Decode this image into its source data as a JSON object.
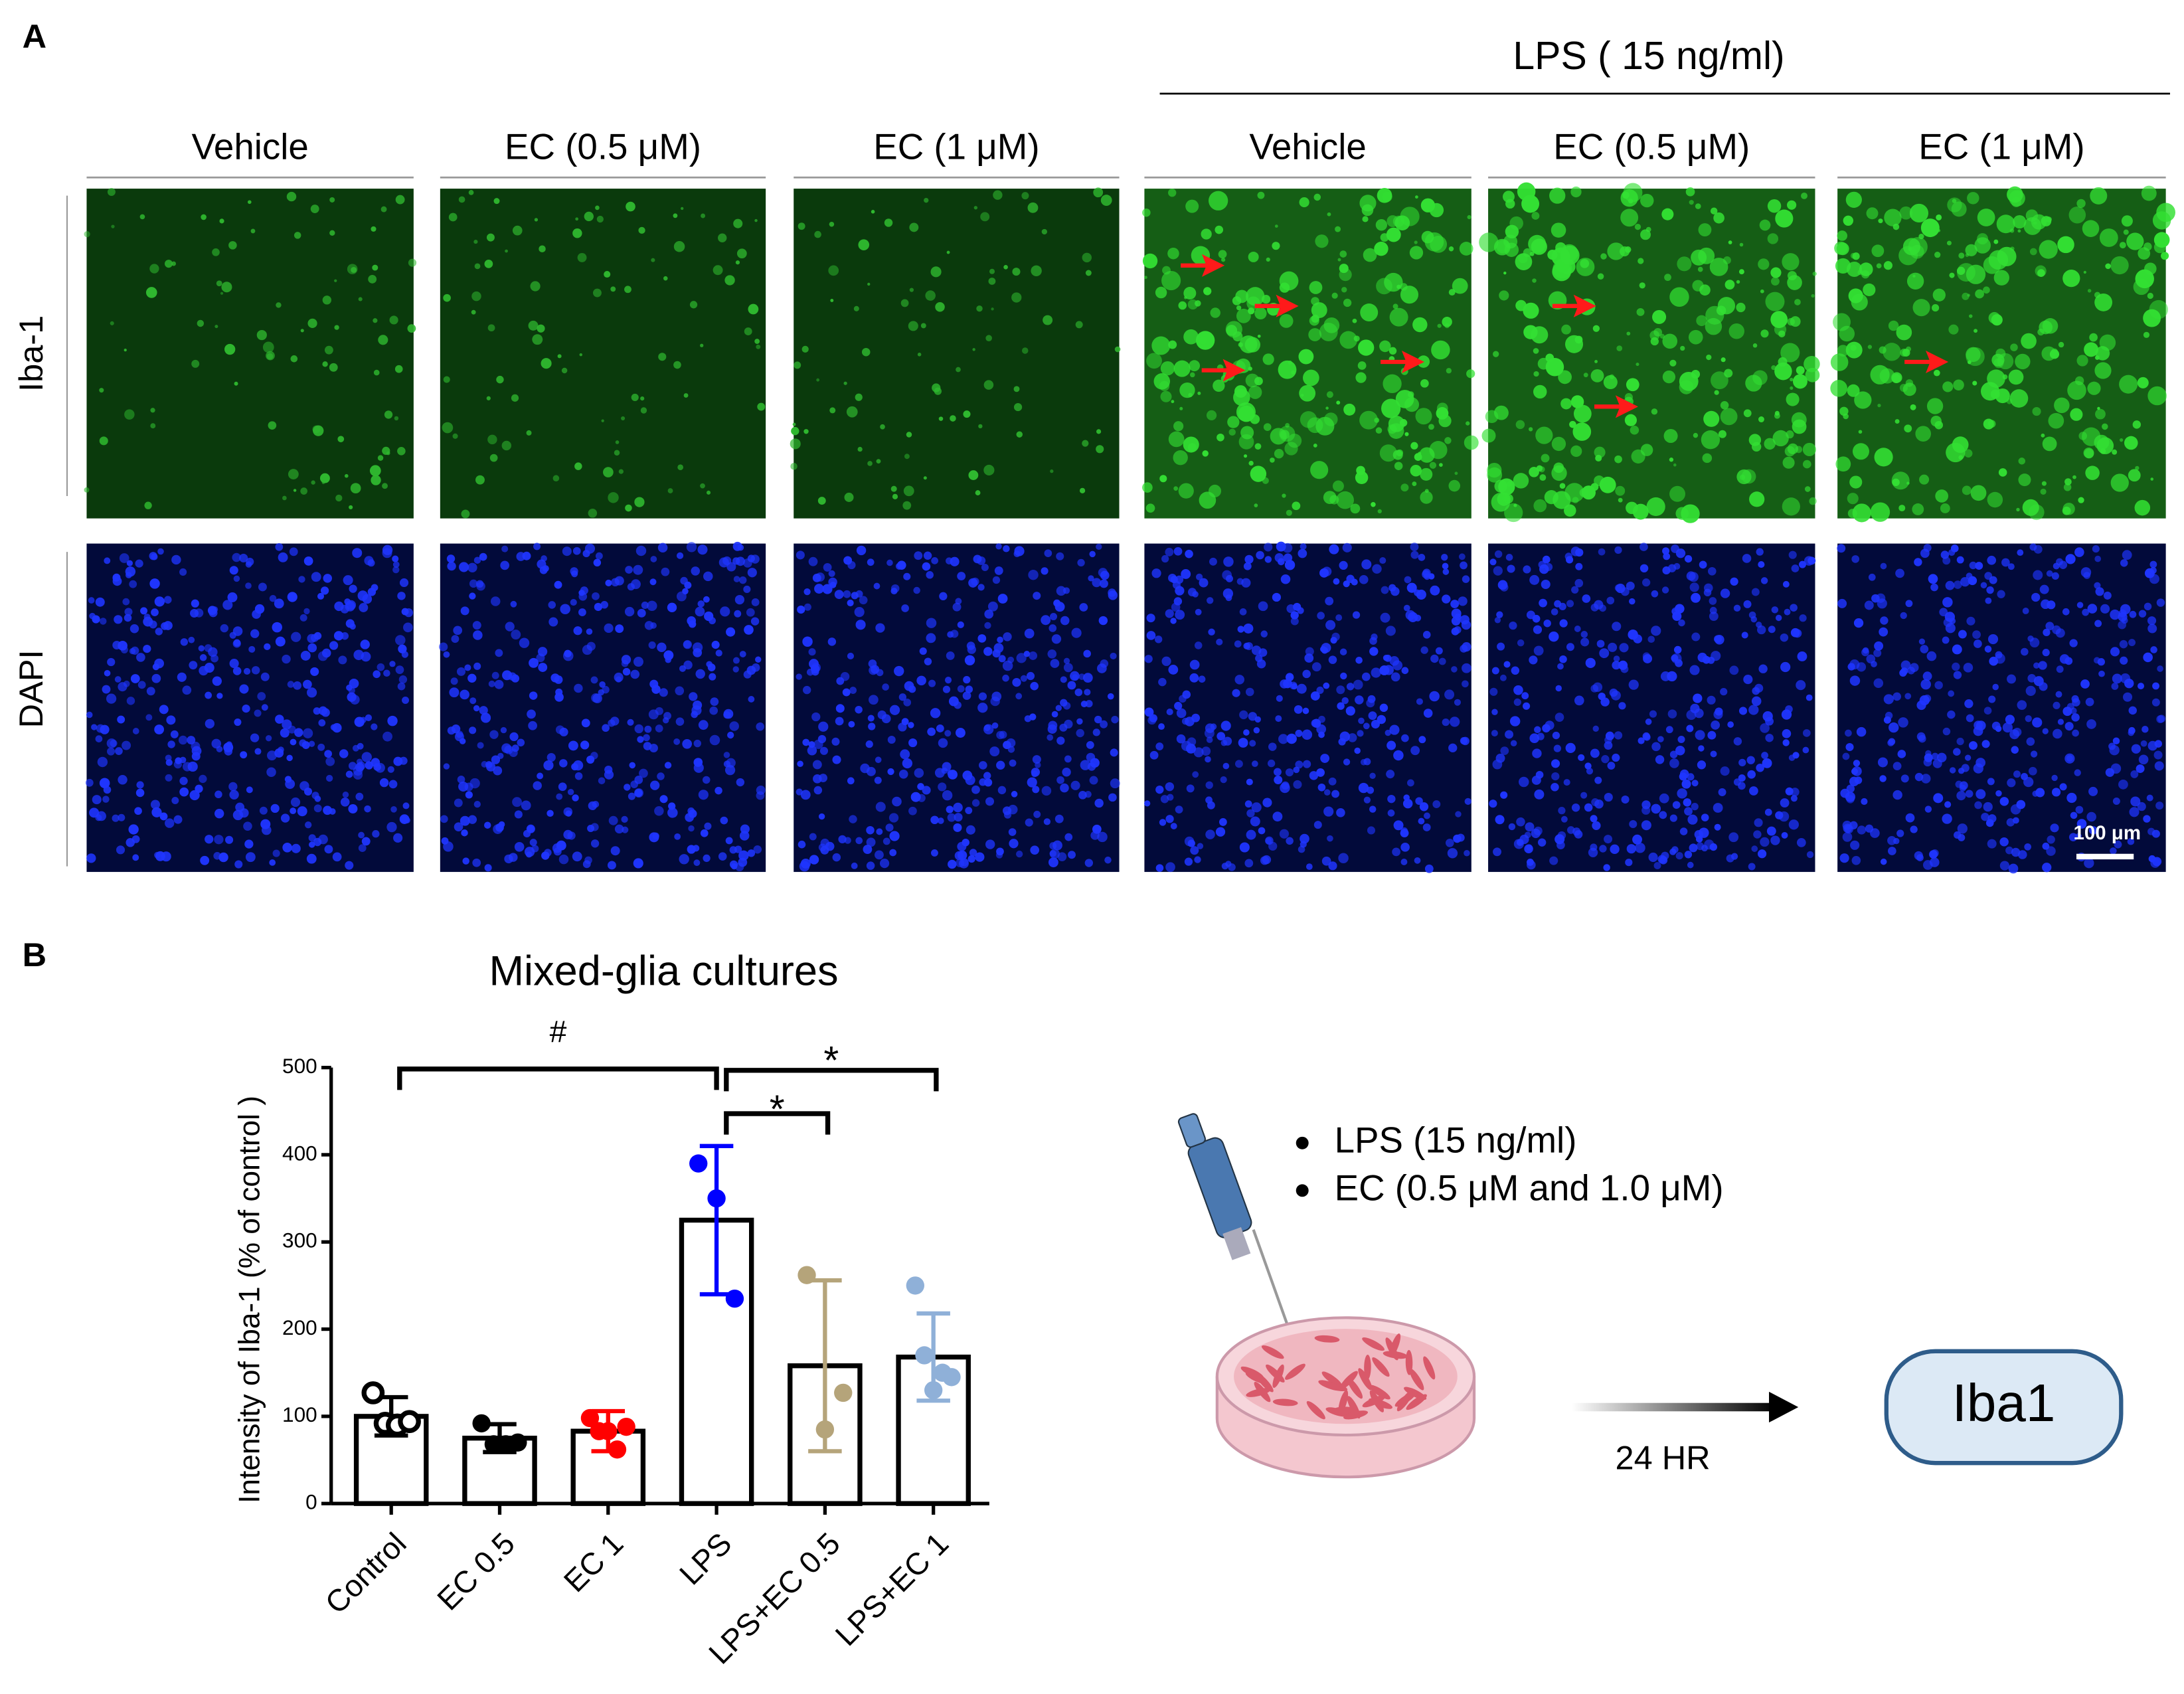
{
  "panel_a": {
    "label": "A",
    "group": "LPS ( 15 ng/ml)",
    "columns": [
      "Vehicle",
      "EC (0.5 μM)",
      "EC (1 μM)",
      "Vehicle",
      "EC (0.5 μM)",
      "EC (1 μM)"
    ],
    "rows": [
      "Iba-1",
      "DAPI"
    ],
    "scale_bar": "100 μm"
  },
  "chart_data": {
    "type": "bar",
    "panel": "B",
    "title": "Mixed-glia cultures",
    "ylabel": "Intensity of Iba-1 (% of control )",
    "categories": [
      "Control",
      "EC 0.5",
      "EC 1",
      "LPS",
      "LPS+EC 0.5",
      "LPS+EC 1"
    ],
    "values": [
      100,
      75,
      83,
      325,
      158,
      168
    ],
    "errors": [
      22,
      16,
      23,
      85,
      98,
      50
    ],
    "points": [
      [
        127,
        92,
        90,
        94
      ],
      [
        92,
        68,
        68,
        70
      ],
      [
        98,
        83,
        83,
        62,
        88
      ],
      [
        390,
        350,
        235
      ],
      [
        262,
        85,
        127
      ],
      [
        250,
        170,
        130,
        150,
        145
      ]
    ],
    "colors": [
      "#000000",
      "#000000",
      "#ff0000",
      "#0000ff",
      "#b5a47a",
      "#8fb0d8"
    ],
    "hollow": [
      true,
      false,
      false,
      false,
      false,
      false
    ],
    "ylim": [
      0,
      500
    ],
    "yticks": [
      0,
      100,
      200,
      300,
      400,
      500
    ],
    "annotations": [
      {
        "text": "#",
        "between": [
          "Control",
          "LPS"
        ]
      },
      {
        "text": "*",
        "between": [
          "LPS",
          "LPS+EC 1"
        ]
      },
      {
        "text": "*",
        "between": [
          "LPS",
          "LPS+EC 0.5"
        ]
      }
    ]
  },
  "schematic": {
    "bullets": [
      "LPS (15 ng/ml)",
      "EC (0.5 μM and 1.0 μM)"
    ],
    "arrow_label": "24 HR",
    "target": "Iba1"
  }
}
